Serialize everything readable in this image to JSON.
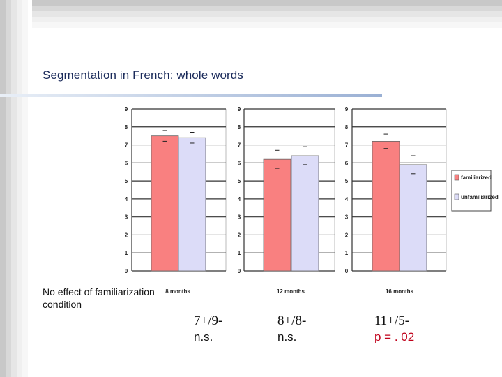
{
  "slide": {
    "title": "Segmentation in French: whole words",
    "note": "No effect of familiarization condition"
  },
  "stats": [
    {
      "counts": "7+/9-",
      "sig": "n.s.",
      "sig_color": "#111111"
    },
    {
      "counts": "8+/8-",
      "sig": "n.s.",
      "sig_color": "#111111"
    },
    {
      "counts": "11+/5-",
      "sig": "p = . 02",
      "sig_color": "#c0001a"
    }
  ],
  "colors": {
    "familiarized": "#f98080",
    "unfamiliarized": "#dcdcf8",
    "stat_red": "#c0001a"
  },
  "chart_data": [
    {
      "type": "bar",
      "categories": [
        "8 months"
      ],
      "series": [
        {
          "name": "familiarized",
          "values": [
            7.5
          ],
          "error": [
            0.3
          ]
        },
        {
          "name": "unfamiliarized",
          "values": [
            7.4
          ],
          "error": [
            0.3
          ]
        }
      ],
      "ylim": [
        0,
        9
      ],
      "yticks": [
        "0",
        "1",
        "2",
        "3",
        "4",
        "5",
        "6",
        "7",
        "8",
        "9"
      ],
      "grid": true
    },
    {
      "type": "bar",
      "categories": [
        "12 months"
      ],
      "series": [
        {
          "name": "familiarized",
          "values": [
            6.2
          ],
          "error": [
            0.5
          ]
        },
        {
          "name": "unfamiliarized",
          "values": [
            6.4
          ],
          "error": [
            0.5
          ]
        }
      ],
      "ylim": [
        0,
        9
      ],
      "yticks": [
        "0",
        "1",
        "2",
        "3",
        "4",
        "5",
        "6",
        "7",
        "8",
        "9"
      ],
      "grid": true
    },
    {
      "type": "bar",
      "categories": [
        "16 months"
      ],
      "series": [
        {
          "name": "familiarized",
          "values": [
            7.2
          ],
          "error": [
            0.4
          ]
        },
        {
          "name": "unfamiliarized",
          "values": [
            5.9
          ],
          "error": [
            0.5
          ]
        }
      ],
      "ylim": [
        0,
        9
      ],
      "yticks": [
        "0",
        "1",
        "2",
        "3",
        "4",
        "5",
        "6",
        "7",
        "8",
        "9"
      ],
      "grid": true
    }
  ],
  "legend": {
    "placement": "right",
    "items": [
      {
        "label": "familiarized",
        "color": "#f98080"
      },
      {
        "label": "unfamiliarized",
        "color": "#dcdcf8"
      }
    ]
  }
}
